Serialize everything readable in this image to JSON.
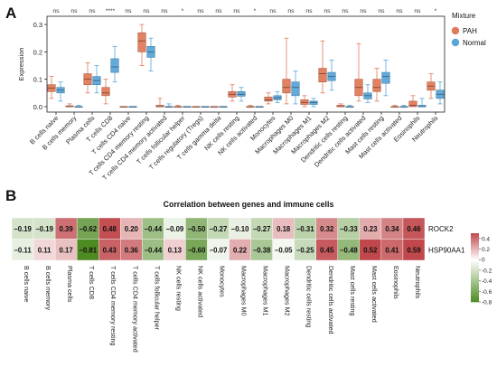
{
  "chart_data": [
    {
      "type": "boxplot",
      "panel_label": "A",
      "ylabel": "Expression",
      "ylim": [
        -0.02,
        0.33
      ],
      "yticks": [
        0.0,
        0.1,
        0.2,
        0.3
      ],
      "ytick_labels": [
        "0.0",
        "0.1",
        "0.2",
        "0.3"
      ],
      "legend": {
        "title": "Mixture",
        "position": "top-right",
        "entries": [
          "PAH",
          "Normal"
        ]
      },
      "series_colors": {
        "PAH": "#e07b5a",
        "Normal": "#5ba6d9"
      },
      "categories": [
        "B cells naive",
        "B cells memory",
        "Plasma cells",
        "T cells CD8",
        "T cells CD4 naive",
        "T cells CD4 memory resting",
        "T cells CD4 memory activated",
        "T cells follicular helper",
        "T cells regulatory (Tregs)",
        "T cells gamma delta",
        "NK cells resting",
        "NK cells activated",
        "Monocytes",
        "Macrophages M0",
        "Macrophages M1",
        "Macrophages M2",
        "Dendritic cells resting",
        "Dendritic cells activated",
        "Mast cells resting",
        "Mast cells activated",
        "Eosinophils",
        "Neutrophils"
      ],
      "significance": [
        "ns",
        "ns",
        "ns",
        "****",
        "ns",
        "ns",
        "ns",
        "*",
        "ns",
        "ns",
        "ns",
        "*",
        "ns",
        "ns",
        "ns",
        "ns",
        "ns",
        "ns",
        "ns",
        "ns",
        "ns",
        "*"
      ],
      "boxes": {
        "PAH": [
          {
            "min": 0.03,
            "q1": 0.055,
            "median": 0.068,
            "q3": 0.08,
            "max": 0.11
          },
          {
            "min": 0.0,
            "q1": 0.0,
            "median": 0.0,
            "q3": 0.003,
            "max": 0.01
          },
          {
            "min": 0.05,
            "q1": 0.08,
            "median": 0.1,
            "q3": 0.12,
            "max": 0.16
          },
          {
            "min": 0.01,
            "q1": 0.04,
            "median": 0.05,
            "q3": 0.07,
            "max": 0.1
          },
          {
            "min": 0.0,
            "q1": 0.0,
            "median": 0.0,
            "q3": 0.0,
            "max": 0.0
          },
          {
            "min": 0.15,
            "q1": 0.2,
            "median": 0.24,
            "q3": 0.27,
            "max": 0.3
          },
          {
            "min": 0.0,
            "q1": 0.0,
            "median": 0.0,
            "q3": 0.005,
            "max": 0.03
          },
          {
            "min": 0.0,
            "q1": 0.0,
            "median": 0.0,
            "q3": 0.0,
            "max": 0.005
          },
          {
            "min": 0.0,
            "q1": 0.0,
            "median": 0.0,
            "q3": 0.0,
            "max": 0.0
          },
          {
            "min": 0.0,
            "q1": 0.0,
            "median": 0.0,
            "q3": 0.0,
            "max": 0.0
          },
          {
            "min": 0.02,
            "q1": 0.035,
            "median": 0.045,
            "q3": 0.055,
            "max": 0.08
          },
          {
            "min": 0.0,
            "q1": 0.0,
            "median": 0.0,
            "q3": 0.0,
            "max": 0.005
          },
          {
            "min": 0.01,
            "q1": 0.02,
            "median": 0.025,
            "q3": 0.035,
            "max": 0.05
          },
          {
            "min": 0.01,
            "q1": 0.05,
            "median": 0.07,
            "q3": 0.1,
            "max": 0.25
          },
          {
            "min": 0.0,
            "q1": 0.008,
            "median": 0.015,
            "q3": 0.025,
            "max": 0.04
          },
          {
            "min": 0.05,
            "q1": 0.09,
            "median": 0.12,
            "q3": 0.14,
            "max": 0.24
          },
          {
            "min": 0.0,
            "q1": 0.0,
            "median": 0.0,
            "q3": 0.005,
            "max": 0.01
          },
          {
            "min": 0.02,
            "q1": 0.04,
            "median": 0.07,
            "q3": 0.1,
            "max": 0.23
          },
          {
            "min": 0.02,
            "q1": 0.055,
            "median": 0.07,
            "q3": 0.1,
            "max": 0.14
          },
          {
            "min": 0.0,
            "q1": 0.0,
            "median": 0.0,
            "q3": 0.0,
            "max": 0.005
          },
          {
            "min": 0.0,
            "q1": 0.0,
            "median": 0.005,
            "q3": 0.02,
            "max": 0.04
          },
          {
            "min": 0.03,
            "q1": 0.06,
            "median": 0.075,
            "q3": 0.09,
            "max": 0.12
          }
        ],
        "Normal": [
          {
            "min": 0.02,
            "q1": 0.05,
            "median": 0.06,
            "q3": 0.07,
            "max": 0.09
          },
          {
            "min": 0.0,
            "q1": 0.0,
            "median": 0.0,
            "q3": 0.0,
            "max": 0.005
          },
          {
            "min": 0.05,
            "q1": 0.08,
            "median": 0.095,
            "q3": 0.11,
            "max": 0.15
          },
          {
            "min": 0.09,
            "q1": 0.125,
            "median": 0.145,
            "q3": 0.175,
            "max": 0.22
          },
          {
            "min": 0.0,
            "q1": 0.0,
            "median": 0.0,
            "q3": 0.0,
            "max": 0.0
          },
          {
            "min": 0.13,
            "q1": 0.18,
            "median": 0.2,
            "q3": 0.22,
            "max": 0.25
          },
          {
            "min": 0.0,
            "q1": 0.0,
            "median": 0.0,
            "q3": 0.0,
            "max": 0.01
          },
          {
            "min": 0.0,
            "q1": 0.0,
            "median": 0.0,
            "q3": 0.0,
            "max": 0.0
          },
          {
            "min": 0.0,
            "q1": 0.0,
            "median": 0.0,
            "q3": 0.0,
            "max": 0.0
          },
          {
            "min": 0.0,
            "q1": 0.0,
            "median": 0.0,
            "q3": 0.0,
            "max": 0.0
          },
          {
            "min": 0.02,
            "q1": 0.038,
            "median": 0.045,
            "q3": 0.055,
            "max": 0.07
          },
          {
            "min": 0.0,
            "q1": 0.0,
            "median": 0.0,
            "q3": 0.0,
            "max": 0.0
          },
          {
            "min": 0.015,
            "q1": 0.025,
            "median": 0.032,
            "q3": 0.04,
            "max": 0.055
          },
          {
            "min": 0.01,
            "q1": 0.04,
            "median": 0.07,
            "q3": 0.09,
            "max": 0.13
          },
          {
            "min": 0.0,
            "q1": 0.008,
            "median": 0.015,
            "q3": 0.02,
            "max": 0.03
          },
          {
            "min": 0.06,
            "q1": 0.095,
            "median": 0.11,
            "q3": 0.125,
            "max": 0.17
          },
          {
            "min": 0.0,
            "q1": 0.0,
            "median": 0.0,
            "q3": 0.0,
            "max": 0.005
          },
          {
            "min": 0.015,
            "q1": 0.028,
            "median": 0.04,
            "q3": 0.05,
            "max": 0.08
          },
          {
            "min": 0.04,
            "q1": 0.085,
            "median": 0.11,
            "q3": 0.125,
            "max": 0.17
          },
          {
            "min": 0.0,
            "q1": 0.0,
            "median": 0.0,
            "q3": 0.0,
            "max": 0.005
          },
          {
            "min": 0.0,
            "q1": 0.0,
            "median": 0.0,
            "q3": 0.005,
            "max": 0.03
          },
          {
            "min": 0.01,
            "q1": 0.03,
            "median": 0.045,
            "q3": 0.06,
            "max": 0.09
          }
        ]
      }
    },
    {
      "type": "heatmap",
      "panel_label": "B",
      "title": "Correlation between genes and immune cells",
      "rows": [
        "ROCK2",
        "HSP90AA1"
      ],
      "columns": [
        "B cells naive",
        "B cells memory",
        "Plasma cells",
        "T cells CD8",
        "T cells CD4 memory resting",
        "T cells CD4 memory activated",
        "T cells follicular helper",
        "NK cells resting",
        "NK cells activated",
        "Monocytes",
        "Macrophages M0",
        "Macrophages M1",
        "Macrophages M2",
        "Dendritic cells resting",
        "Dendritic cells activated",
        "Mast cells resting",
        "Mast cells activated",
        "Eosinophils",
        "Neutrophils"
      ],
      "values": [
        [
          -0.19,
          -0.19,
          0.39,
          -0.62,
          0.48,
          0.2,
          -0.44,
          -0.09,
          -0.5,
          -0.27,
          -0.1,
          -0.27,
          0.18,
          -0.31,
          0.32,
          -0.33,
          0.23,
          0.34,
          0.46
        ],
        [
          -0.11,
          0.11,
          0.17,
          -0.81,
          0.43,
          0.36,
          -0.44,
          0.13,
          -0.6,
          -0.07,
          0.22,
          -0.38,
          -0.05,
          -0.25,
          0.45,
          -0.48,
          0.52,
          0.41,
          0.59
        ]
      ],
      "colorbar": {
        "range": [
          -0.8,
          0.5
        ],
        "ticks": [
          0.4,
          0.2,
          0.0,
          -0.2,
          -0.4,
          -0.6,
          -0.8
        ],
        "tick_labels": [
          "0.4",
          "0.2",
          "0",
          "-0.2",
          "-0.4",
          "-0.6",
          "-0.8"
        ]
      },
      "color_scale": {
        "negative": "#4d8a22",
        "zero": "#ffffff",
        "positive": "#c0484c"
      }
    }
  ]
}
